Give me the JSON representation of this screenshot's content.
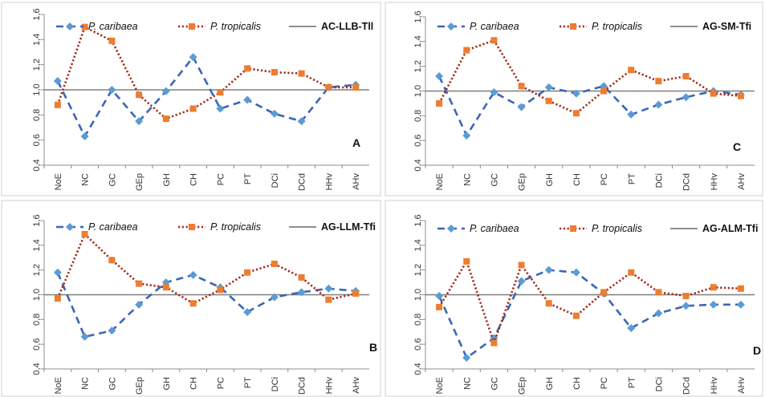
{
  "colors": {
    "caribaea": "#3a66b5",
    "caribaea_marker": "#5b9bd5",
    "tropicalis": "#a32c1c",
    "tropicalis_marker": "#ed7d31",
    "reference": "#7f7f7f"
  },
  "chart_data": [
    {
      "type": "line",
      "panel": "A",
      "categories": [
        "NoE",
        "NC",
        "GC",
        "GEp",
        "GH",
        "CH",
        "PC",
        "PT",
        "DCi",
        "DCd",
        "HHv",
        "AHv"
      ],
      "ylim": [
        0.4,
        1.6
      ],
      "yticks": [
        "0,4",
        "0,6",
        "0,8",
        "1,0",
        "1,2",
        "1,4",
        "1,6"
      ],
      "reference": {
        "name": "AC-LLB-Tll",
        "value": 1.0
      },
      "series": [
        {
          "name": "P. caribaea",
          "values": [
            1.07,
            0.63,
            1.0,
            0.75,
            0.99,
            1.26,
            0.85,
            0.92,
            0.81,
            0.75,
            1.02,
            1.04
          ]
        },
        {
          "name": "P. tropicalis",
          "values": [
            0.88,
            1.5,
            1.39,
            0.96,
            0.77,
            0.85,
            0.98,
            1.17,
            1.14,
            1.13,
            1.02,
            1.02
          ]
        }
      ]
    },
    {
      "type": "line",
      "panel": "C",
      "categories": [
        "NoE",
        "NC",
        "GC",
        "GEp",
        "GH",
        "CH",
        "PC",
        "PT",
        "DCi",
        "DCd",
        "HHv",
        "AHv"
      ],
      "ylim": [
        0.4,
        1.6
      ],
      "yticks": [
        "0,4",
        "0,6",
        "0,8",
        "1,0",
        "1,2",
        "1,4",
        "1,6"
      ],
      "reference": {
        "name": "AG-SM-Tfi",
        "value": 1.0
      },
      "series": [
        {
          "name": "P. caribaea",
          "values": [
            1.12,
            0.64,
            0.99,
            0.87,
            1.03,
            0.98,
            1.04,
            0.81,
            0.89,
            0.95,
            1.0,
            0.97
          ]
        },
        {
          "name": "P. tropicalis",
          "values": [
            0.9,
            1.33,
            1.41,
            1.04,
            0.92,
            0.82,
            1.0,
            1.17,
            1.08,
            1.12,
            0.98,
            0.96
          ]
        }
      ]
    },
    {
      "type": "line",
      "panel": "B",
      "categories": [
        "NoE",
        "NC",
        "GC",
        "GEp",
        "GH",
        "CH",
        "PC",
        "PT",
        "DCi",
        "DCd",
        "HHv",
        "AHv"
      ],
      "ylim": [
        0.4,
        1.6
      ],
      "yticks": [
        "0,4",
        "0,6",
        "0,8",
        "1,0",
        "1,2",
        "1,4",
        "1,6"
      ],
      "reference": {
        "name": "AG-LLM-Tfi",
        "value": 1.0
      },
      "series": [
        {
          "name": "P. caribaea",
          "values": [
            1.18,
            0.66,
            0.71,
            0.92,
            1.1,
            1.16,
            1.06,
            0.86,
            0.98,
            1.02,
            1.05,
            1.03
          ]
        },
        {
          "name": "P. tropicalis",
          "values": [
            0.97,
            1.49,
            1.28,
            1.09,
            1.06,
            0.93,
            1.04,
            1.18,
            1.25,
            1.14,
            0.96,
            1.01
          ]
        }
      ]
    },
    {
      "type": "line",
      "panel": "D",
      "categories": [
        "NoE",
        "NC",
        "GC",
        "GEp",
        "GH",
        "CH",
        "PC",
        "PT",
        "DCi",
        "DCd",
        "HHv",
        "AHv"
      ],
      "ylim": [
        0.4,
        1.6
      ],
      "yticks": [
        "0,4",
        "0,6",
        "0,8",
        "1,0",
        "1,2",
        "1,4",
        "1,6"
      ],
      "reference": {
        "name": "AG-ALM-Tfi",
        "value": 1.0
      },
      "series": [
        {
          "name": "P. caribaea",
          "values": [
            0.99,
            0.49,
            0.65,
            1.11,
            1.2,
            1.18,
            1.01,
            0.73,
            0.85,
            0.91,
            0.92,
            0.92
          ]
        },
        {
          "name": "P. tropicalis",
          "values": [
            0.9,
            1.27,
            0.61,
            1.24,
            0.93,
            0.83,
            1.02,
            1.18,
            1.02,
            0.99,
            1.06,
            1.05
          ]
        }
      ]
    }
  ]
}
